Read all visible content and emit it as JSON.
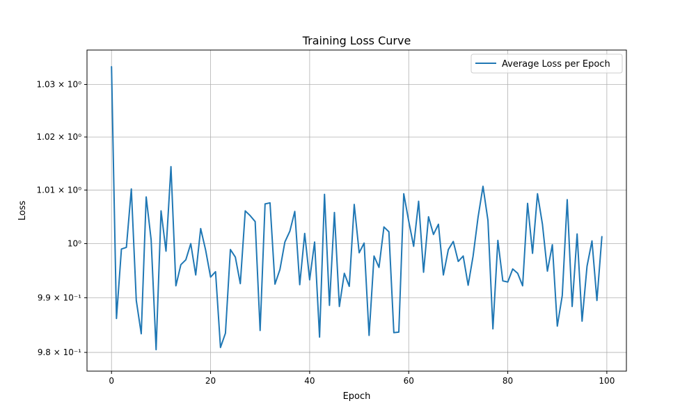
{
  "chart_data": {
    "type": "line",
    "title": "Training Loss Curve",
    "xlabel": "Epoch",
    "ylabel": "Loss",
    "y_scale": "log",
    "grid": true,
    "legend_position": "top-right",
    "xlim": [
      -4.95,
      103.95
    ],
    "ylim": [
      0.9766,
      1.0366
    ],
    "x_ticks": [
      0,
      20,
      40,
      60,
      80,
      100
    ],
    "x_tick_labels": [
      "0",
      "20",
      "40",
      "60",
      "80",
      "100"
    ],
    "y_ticks": [
      0.98,
      0.99,
      1.0,
      1.01,
      1.02,
      1.03
    ],
    "y_tick_labels": [
      "9.8 × 10⁻¹",
      "9.9 × 10⁻¹",
      "10⁰",
      "1.01 × 10⁰",
      "1.02 × 10⁰",
      "1.03 × 10⁰"
    ],
    "series": [
      {
        "name": "Average Loss per Epoch",
        "color": "#1f77b4",
        "x": [
          0,
          1,
          2,
          3,
          4,
          5,
          6,
          7,
          8,
          9,
          10,
          11,
          12,
          13,
          14,
          15,
          16,
          17,
          18,
          19,
          20,
          21,
          22,
          23,
          24,
          25,
          26,
          27,
          28,
          29,
          30,
          31,
          32,
          33,
          34,
          35,
          36,
          37,
          38,
          39,
          40,
          41,
          42,
          43,
          44,
          45,
          46,
          47,
          48,
          49,
          50,
          51,
          52,
          53,
          54,
          55,
          56,
          57,
          58,
          59,
          60,
          61,
          62,
          63,
          64,
          65,
          66,
          67,
          68,
          69,
          70,
          71,
          72,
          73,
          74,
          75,
          76,
          77,
          78,
          79,
          80,
          81,
          82,
          83,
          84,
          85,
          86,
          87,
          88,
          89,
          90,
          91,
          92,
          93,
          94,
          95,
          96,
          97,
          98,
          99
        ],
        "values": [
          1.0334,
          0.9862,
          0.999,
          0.9993,
          1.0102,
          0.9895,
          0.9834,
          1.0087,
          1.0007,
          0.9805,
          1.0061,
          0.9986,
          1.0144,
          0.9922,
          0.9961,
          0.997,
          1.0,
          0.9942,
          1.0028,
          0.9988,
          0.9938,
          0.9948,
          0.9809,
          0.9835,
          0.9989,
          0.9975,
          0.9926,
          1.0061,
          1.0052,
          1.0041,
          0.984,
          1.0074,
          1.0076,
          0.9925,
          0.9952,
          1.0003,
          1.0023,
          1.006,
          0.9924,
          1.0019,
          0.9933,
          1.0003,
          0.9828,
          1.0092,
          0.9886,
          1.0058,
          0.9884,
          0.9945,
          0.9921,
          1.0073,
          0.9983,
          1.0001,
          0.9831,
          0.9977,
          0.9956,
          1.0031,
          1.0022,
          0.9836,
          0.9837,
          1.0093,
          1.0042,
          0.9995,
          1.0079,
          0.9947,
          1.005,
          1.0017,
          1.0036,
          0.9942,
          0.9989,
          1.0004,
          0.9967,
          0.9977,
          0.9923,
          0.9977,
          1.0049,
          1.0107,
          1.0043,
          0.9843,
          1.0006,
          0.9931,
          0.9929,
          0.9953,
          0.9945,
          0.9922,
          1.0075,
          0.9982,
          1.0093,
          1.0036,
          0.9949,
          0.9998,
          0.9848,
          0.9904,
          1.0082,
          0.9884,
          1.0018,
          0.9857,
          0.9958,
          1.0005,
          0.9895,
          1.0013
        ]
      }
    ]
  }
}
